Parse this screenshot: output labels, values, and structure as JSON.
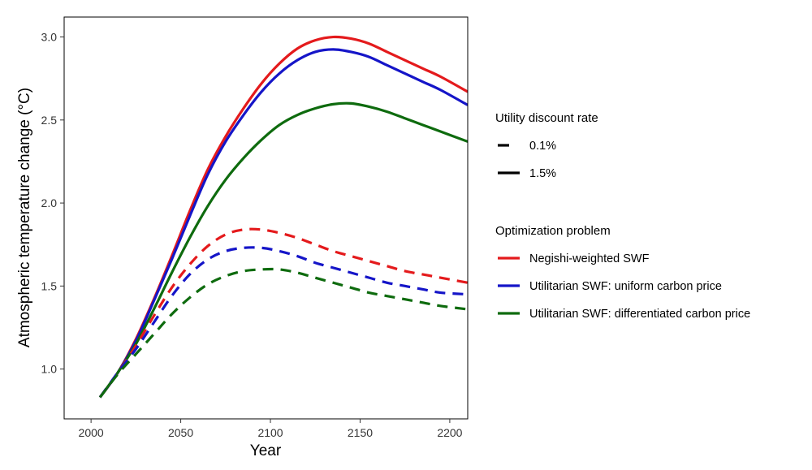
{
  "chart_data": {
    "type": "line",
    "xlabel": "Year",
    "ylabel": "Atmospheric temperature change (°C)",
    "xlim": [
      1985,
      2210
    ],
    "ylim": [
      0.7,
      3.12
    ],
    "x_ticks": [
      "2000",
      "2050",
      "2100",
      "2150",
      "2200"
    ],
    "y_ticks": [
      "1.0",
      "1.5",
      "2.0",
      "2.5",
      "3.0"
    ],
    "grid": false,
    "legend_position": "right",
    "legend_groups": [
      {
        "title": "Utility discount rate",
        "entries": [
          {
            "label": "0.1%",
            "style": "dashed"
          },
          {
            "label": "1.5%",
            "style": "solid"
          }
        ]
      },
      {
        "title": "Optimization problem",
        "entries": [
          {
            "label": "Negishi-weighted SWF",
            "color": "#e41a1c"
          },
          {
            "label": "Utilitarian SWF: uniform carbon price",
            "color": "#1515c8"
          },
          {
            "label": "Utilitarian SWF: differentiated carbon price",
            "color": "#0e6b0e"
          }
        ]
      }
    ],
    "series": [
      {
        "problem": "Negishi-weighted SWF",
        "discount_rate": "1.5%",
        "color": "#e41a1c",
        "style": "solid",
        "x": [
          2005,
          2015,
          2025,
          2035,
          2045,
          2055,
          2065,
          2075,
          2085,
          2095,
          2105,
          2115,
          2125,
          2135,
          2145,
          2155,
          2165,
          2175,
          2185,
          2195,
          2210
        ],
        "y": [
          0.83,
          0.98,
          1.18,
          1.42,
          1.68,
          1.95,
          2.2,
          2.4,
          2.57,
          2.72,
          2.84,
          2.93,
          2.98,
          3.0,
          2.99,
          2.96,
          2.91,
          2.86,
          2.81,
          2.76,
          2.67
        ]
      },
      {
        "problem": "Utilitarian SWF: uniform carbon price",
        "discount_rate": "1.5%",
        "color": "#1515c8",
        "style": "solid",
        "x": [
          2005,
          2015,
          2025,
          2035,
          2045,
          2055,
          2065,
          2075,
          2085,
          2095,
          2105,
          2115,
          2125,
          2135,
          2145,
          2155,
          2165,
          2175,
          2185,
          2195,
          2210
        ],
        "y": [
          0.83,
          0.98,
          1.17,
          1.41,
          1.66,
          1.92,
          2.17,
          2.37,
          2.53,
          2.67,
          2.78,
          2.86,
          2.91,
          2.925,
          2.91,
          2.88,
          2.83,
          2.78,
          2.73,
          2.68,
          2.59
        ]
      },
      {
        "problem": "Utilitarian SWF: differentiated carbon price",
        "discount_rate": "1.5%",
        "color": "#0e6b0e",
        "style": "solid",
        "x": [
          2005,
          2015,
          2025,
          2035,
          2045,
          2055,
          2065,
          2075,
          2085,
          2095,
          2105,
          2115,
          2125,
          2135,
          2145,
          2155,
          2165,
          2175,
          2185,
          2195,
          2210
        ],
        "y": [
          0.83,
          0.98,
          1.15,
          1.36,
          1.58,
          1.79,
          1.98,
          2.14,
          2.27,
          2.38,
          2.47,
          2.53,
          2.57,
          2.595,
          2.6,
          2.58,
          2.55,
          2.51,
          2.47,
          2.43,
          2.37
        ]
      },
      {
        "problem": "Negishi-weighted SWF",
        "discount_rate": "0.1%",
        "color": "#e41a1c",
        "style": "dashed",
        "x": [
          2005,
          2015,
          2025,
          2035,
          2045,
          2055,
          2065,
          2075,
          2085,
          2095,
          2105,
          2115,
          2125,
          2135,
          2145,
          2155,
          2165,
          2175,
          2185,
          2195,
          2210
        ],
        "y": [
          0.83,
          0.98,
          1.14,
          1.32,
          1.49,
          1.63,
          1.74,
          1.81,
          1.84,
          1.84,
          1.82,
          1.79,
          1.75,
          1.71,
          1.68,
          1.65,
          1.62,
          1.59,
          1.57,
          1.55,
          1.52
        ]
      },
      {
        "problem": "Utilitarian SWF: uniform carbon price",
        "discount_rate": "0.1%",
        "color": "#1515c8",
        "style": "dashed",
        "x": [
          2005,
          2015,
          2025,
          2035,
          2045,
          2055,
          2065,
          2075,
          2085,
          2095,
          2105,
          2115,
          2125,
          2135,
          2145,
          2155,
          2165,
          2175,
          2185,
          2195,
          2210
        ],
        "y": [
          0.83,
          0.98,
          1.12,
          1.28,
          1.44,
          1.57,
          1.66,
          1.71,
          1.73,
          1.73,
          1.71,
          1.68,
          1.64,
          1.61,
          1.58,
          1.55,
          1.52,
          1.5,
          1.48,
          1.46,
          1.45
        ]
      },
      {
        "problem": "Utilitarian SWF: differentiated carbon price",
        "discount_rate": "0.1%",
        "color": "#0e6b0e",
        "style": "dashed",
        "x": [
          2005,
          2015,
          2025,
          2035,
          2045,
          2055,
          2065,
          2075,
          2085,
          2095,
          2105,
          2115,
          2125,
          2135,
          2145,
          2155,
          2165,
          2175,
          2185,
          2195,
          2210
        ],
        "y": [
          0.83,
          0.97,
          1.09,
          1.21,
          1.33,
          1.43,
          1.51,
          1.56,
          1.59,
          1.6,
          1.6,
          1.58,
          1.55,
          1.52,
          1.49,
          1.46,
          1.44,
          1.42,
          1.4,
          1.38,
          1.36
        ]
      }
    ]
  }
}
